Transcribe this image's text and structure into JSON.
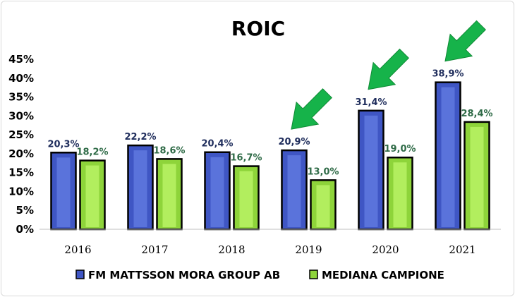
{
  "chart_data": {
    "type": "bar",
    "title": "ROIC",
    "xlabel": "",
    "ylabel": "",
    "categories": [
      "2016",
      "2017",
      "2018",
      "2019",
      "2020",
      "2021"
    ],
    "ylim": [
      0,
      45
    ],
    "yticks": [
      "0%",
      "5%",
      "10%",
      "15%",
      "20%",
      "25%",
      "30%",
      "35%",
      "40%",
      "45%"
    ],
    "grid": false,
    "legend_position": "bottom",
    "series": [
      {
        "name": "FM MATTSSON MORA GROUP AB",
        "values": [
          20.3,
          22.2,
          20.4,
          20.9,
          31.4,
          38.9
        ],
        "labels": [
          "20,3%",
          "22,2%",
          "20,4%",
          "20,9%",
          "31,4%",
          "38,9%"
        ],
        "color": "#3f56c4",
        "highlight": "#5a73db",
        "label_color": "#1f2d5c"
      },
      {
        "name": "MEDIANA CAMPIONE",
        "values": [
          18.2,
          18.6,
          16.7,
          13.0,
          19.0,
          28.4
        ],
        "labels": [
          "18,2%",
          "18,6%",
          "16,7%",
          "13,0%",
          "19,0%",
          "28,4%"
        ],
        "color": "#8ed43a",
        "highlight": "#b2ee5e",
        "label_color": "#2f6b47"
      }
    ],
    "annotations": [
      {
        "type": "arrow",
        "target_category": "2019",
        "color": "#16b34a"
      },
      {
        "type": "arrow",
        "target_category": "2020",
        "color": "#16b34a"
      },
      {
        "type": "arrow",
        "target_category": "2021",
        "color": "#16b34a"
      }
    ]
  }
}
